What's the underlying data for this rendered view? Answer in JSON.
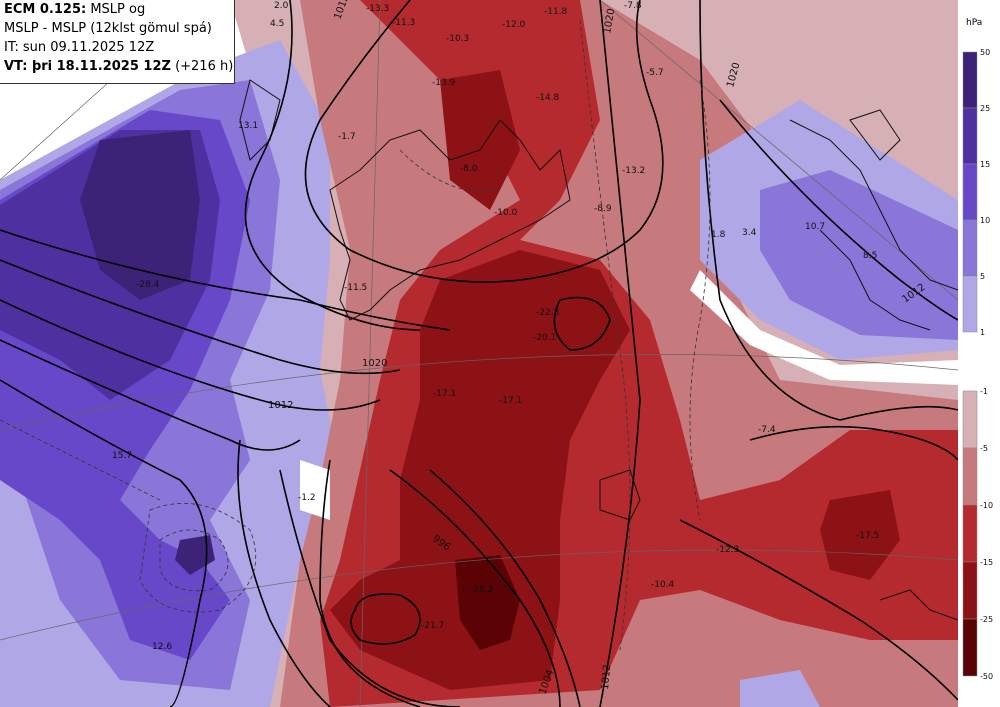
{
  "info": {
    "line1_bold": "ECM 0.125:",
    "line1_rest": " MSLP og",
    "line2": "MSLP - MSLP (12klst gömul spá)",
    "line3": "IT: sun 09.11.2025 12Z",
    "line4_bold": "VT: þri 18.11.2025 12Z",
    "line4_rest": " (+216 h)"
  },
  "legend": {
    "unit": "hPa",
    "positive": {
      "ticks": [
        "50",
        "25",
        "15",
        "10",
        "5",
        "1"
      ],
      "colors": [
        "#3c2378",
        "#4f30a0",
        "#6748c8",
        "#8a76d8",
        "#b0a8e6"
      ]
    },
    "negative": {
      "ticks": [
        "-1",
        "-5",
        "-10",
        "-15",
        "-25",
        "-50"
      ],
      "colors": [
        "#d6b0b4",
        "#c77a7e",
        "#b52a2e",
        "#8c1216",
        "#5a0204"
      ]
    }
  },
  "map": {
    "value_labels": [
      "13.1",
      "-1.7",
      "-28.4",
      "-11.5",
      "15.7",
      "-1.2",
      "12.6",
      "-13.3",
      "-11.3",
      "-12.0",
      "-11.8",
      "-7.8",
      "-10.3",
      "-13.9",
      "-14.8",
      "-5.7",
      "-8.0",
      "-10.0",
      "-13.2",
      "-8.9",
      "1.8",
      "3.4",
      "10.7",
      "8.5",
      "-22.3",
      "-20.1",
      "-17.1",
      "-17.1",
      "-7.4",
      "-28.2",
      "-21.7",
      "-12.3",
      "-10.4",
      "-17.5",
      "2.0",
      "4.5"
    ],
    "isobar_labels": [
      "1012",
      "1020",
      "1012",
      "996",
      "1004",
      "1012",
      "1020",
      "1020",
      "1012"
    ]
  }
}
